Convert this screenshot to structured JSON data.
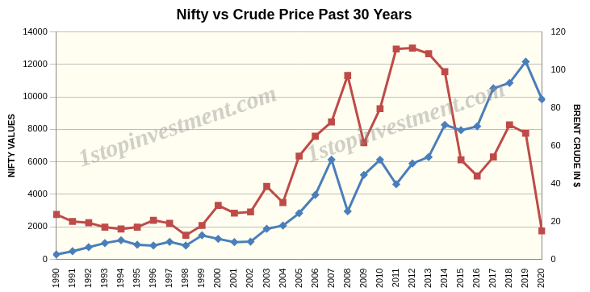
{
  "chart_data": {
    "type": "line",
    "title": "Nifty vs Crude Price Past 30 Years",
    "y_label": "NIFTY VALUES",
    "y2_label": "BRENT CRUDE IN $",
    "annotations": [
      "1stopinvestment.com",
      "1stopinvestment.com"
    ],
    "categories": [
      "1990",
      "1991",
      "1992",
      "1993",
      "1994",
      "1995",
      "1996",
      "1997",
      "1998",
      "1999",
      "2000",
      "2001",
      "2002",
      "2003",
      "2004",
      "2005",
      "2006",
      "2007",
      "2008",
      "2009",
      "2010",
      "2011",
      "2012",
      "2013",
      "2014",
      "2015",
      "2016",
      "2017",
      "2018",
      "2019",
      "2020"
    ],
    "series": [
      {
        "name": "Nifty",
        "color": "#4a7ebb",
        "marker": "diamond",
        "axis": "y",
        "values": [
          300,
          500,
          750,
          1000,
          1180,
          900,
          850,
          1080,
          850,
          1480,
          1260,
          1060,
          1090,
          1880,
          2080,
          2840,
          3970,
          6140,
          2960,
          5200,
          6130,
          4620,
          5900,
          6300,
          8280,
          7950,
          8190,
          10530,
          10860,
          12170,
          9850
        ]
      },
      {
        "name": "Brent Crude",
        "color": "#be4b48",
        "marker": "square",
        "axis": "y2",
        "values": [
          23.7,
          20,
          19.3,
          17,
          16,
          17,
          20.6,
          19,
          12.7,
          17.9,
          28.5,
          24.4,
          25,
          38.5,
          30,
          54.5,
          65,
          72.5,
          97,
          61.5,
          79.5,
          111,
          111.5,
          108.5,
          99,
          52.5,
          44,
          54,
          71,
          66.5,
          15
        ]
      }
    ],
    "ylim": [
      0,
      14000
    ],
    "yticks": [
      0,
      2000,
      4000,
      6000,
      8000,
      10000,
      12000,
      14000
    ],
    "y2lim": [
      0,
      120
    ],
    "y2ticks": [
      0,
      20,
      40,
      60,
      80,
      100,
      120
    ],
    "grid": true
  }
}
